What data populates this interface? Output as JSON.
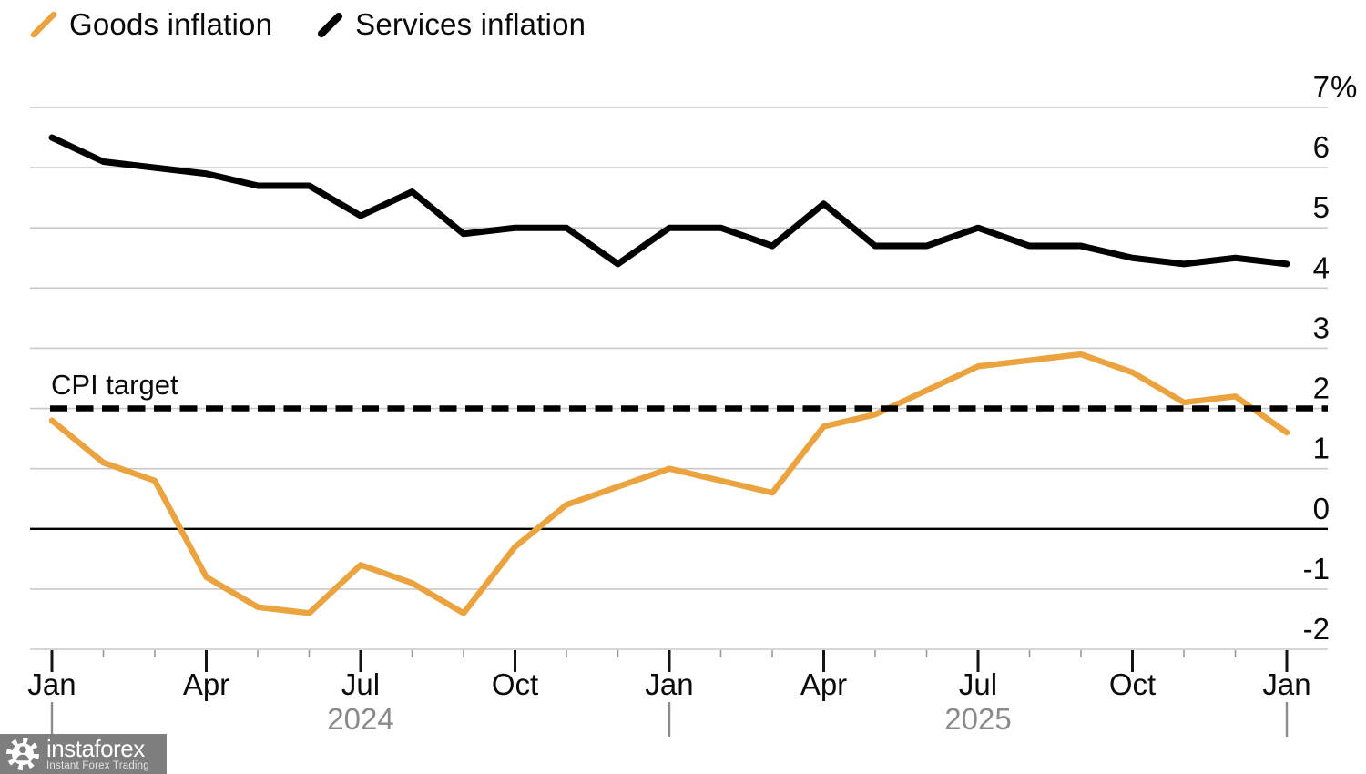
{
  "legend": {
    "items": [
      {
        "label": "Goods inflation",
        "color": "#EAA33E",
        "icon": "goods-line-swatch"
      },
      {
        "label": "Services inflation",
        "color": "#000000",
        "icon": "services-line-swatch"
      }
    ]
  },
  "watermark": {
    "brand": "instaforex",
    "tagline": "Instant Forex Trading",
    "bg_color": "#7e7e7e"
  },
  "chart_data": {
    "type": "line",
    "title": "",
    "x": [
      "Jan 2024",
      "Feb 2024",
      "Mar 2024",
      "Apr 2024",
      "May 2024",
      "Jun 2024",
      "Jul 2024",
      "Aug 2024",
      "Sep 2024",
      "Oct 2024",
      "Nov 2024",
      "Dec 2024",
      "Jan 2025",
      "Feb 2025",
      "Mar 2025",
      "Apr 2025",
      "May 2025",
      "Jun 2025",
      "Jul 2025",
      "Aug 2025",
      "Sep 2025",
      "Oct 2025",
      "Nov 2025",
      "Dec 2025",
      "Jan 2026"
    ],
    "series": [
      {
        "name": "Goods inflation",
        "color": "#EAA33E",
        "stroke_width": 6.5,
        "values": [
          1.8,
          1.1,
          0.8,
          -0.8,
          -1.3,
          -1.4,
          -0.6,
          -0.9,
          -1.4,
          -0.3,
          0.4,
          0.7,
          1.0,
          0.8,
          0.6,
          1.7,
          1.9,
          2.3,
          2.7,
          2.8,
          2.9,
          2.6,
          2.1,
          2.2,
          1.6
        ]
      },
      {
        "name": "Services inflation",
        "color": "#000000",
        "stroke_width": 7,
        "values": [
          6.5,
          6.1,
          6.0,
          5.9,
          5.7,
          5.7,
          5.2,
          5.6,
          4.9,
          5.0,
          5.0,
          4.4,
          5.0,
          5.0,
          4.7,
          5.4,
          4.7,
          4.7,
          5.0,
          4.7,
          4.7,
          4.5,
          4.4,
          4.5,
          4.4
        ]
      }
    ],
    "ylim": [
      -2,
      7
    ],
    "ylabel": "",
    "xlabel": "",
    "grid": "horizontal",
    "gridline_values": [
      7,
      6,
      5,
      4,
      3,
      2,
      1,
      -1,
      -2
    ],
    "zero_line_value": 0,
    "y_ticks": [
      {
        "value": 7,
        "label": "7",
        "suffix": "%"
      },
      {
        "value": 6,
        "label": "6"
      },
      {
        "value": 5,
        "label": "5"
      },
      {
        "value": 4,
        "label": "4"
      },
      {
        "value": 3,
        "label": "3"
      },
      {
        "value": 2,
        "label": "2"
      },
      {
        "value": 1,
        "label": "1"
      },
      {
        "value": 0,
        "label": "0"
      },
      {
        "value": -1,
        "label": "-1"
      },
      {
        "value": -2,
        "label": "-2"
      }
    ],
    "x_major_ticks": [
      {
        "at": 0,
        "label": "Jan"
      },
      {
        "at": 3,
        "label": "Apr"
      },
      {
        "at": 6,
        "label": "Jul"
      },
      {
        "at": 9,
        "label": "Oct"
      },
      {
        "at": 12,
        "label": "Jan"
      },
      {
        "at": 15,
        "label": "Apr"
      },
      {
        "at": 18,
        "label": "Jul"
      },
      {
        "at": 21,
        "label": "Oct"
      },
      {
        "at": 24,
        "label": "Jan"
      }
    ],
    "year_labels": [
      {
        "at": 6,
        "label": "2024"
      },
      {
        "at": 18,
        "label": "2025"
      }
    ],
    "year_separators": [
      0,
      12,
      24
    ],
    "cpi_target": {
      "value": 2,
      "label": "CPI target",
      "line_style": "dashed",
      "color": "#000000"
    },
    "legend_position": "top-left",
    "colors": {
      "gridline": "#c9c9c9",
      "axis_line": "#bdbdbd",
      "minor_tick": "#9a9a9a",
      "major_tick": "#141414",
      "axis_text": "#0a0a0a",
      "year_text": "#8a8a8a",
      "year_separator": "#8c8c8c"
    }
  }
}
